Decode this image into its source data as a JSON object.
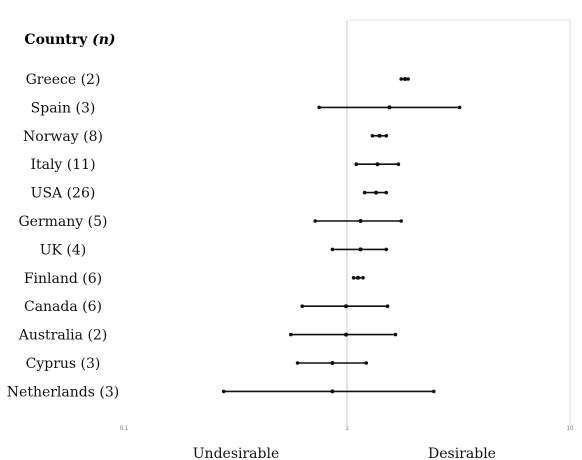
{
  "chart_data": {
    "type": "forest",
    "header": "Country (n)",
    "x_scale": "log",
    "xlim": [
      0.1,
      10
    ],
    "x_ticks": [
      {
        "value": 0.1,
        "label": "0.1"
      },
      {
        "value": 1,
        "label": "1"
      },
      {
        "value": 10,
        "label": "10"
      }
    ],
    "reference_line": 1,
    "left_label": "Undesirable",
    "right_label": "Desirable",
    "rows": [
      {
        "country": "Greece",
        "n": "2",
        "label": "Greece (2)",
        "low": 1.75,
        "est": 1.82,
        "high": 1.88
      },
      {
        "country": "Spain",
        "n": "3",
        "label": "Spain (3)",
        "low": 0.75,
        "est": 1.55,
        "high": 3.2
      },
      {
        "country": "Norway",
        "n": "8",
        "label": "Norway (8)",
        "low": 1.3,
        "est": 1.4,
        "high": 1.5
      },
      {
        "country": "Italy",
        "n": "11",
        "label": "Italy (11)",
        "low": 1.1,
        "est": 1.37,
        "high": 1.7
      },
      {
        "country": "USA",
        "n": "26",
        "label": "USA (26)",
        "low": 1.2,
        "est": 1.35,
        "high": 1.5
      },
      {
        "country": "Germany",
        "n": "5",
        "label": "Germany (5)",
        "low": 0.72,
        "est": 1.15,
        "high": 1.75
      },
      {
        "country": "UK",
        "n": "4",
        "label": "UK (4)",
        "low": 0.86,
        "est": 1.15,
        "high": 1.5
      },
      {
        "country": "Finland",
        "n": "6",
        "label": "Finland (6)",
        "low": 1.07,
        "est": 1.12,
        "high": 1.18
      },
      {
        "country": "Canada",
        "n": "6",
        "label": "Canada (6)",
        "low": 0.63,
        "est": 0.99,
        "high": 1.52
      },
      {
        "country": "Australia",
        "n": "2",
        "label": "Australia (2)",
        "low": 0.56,
        "est": 0.99,
        "high": 1.65
      },
      {
        "country": "Cyprus",
        "n": "3",
        "label": "Cyprus (3)",
        "low": 0.6,
        "est": 0.86,
        "high": 1.22
      },
      {
        "country": "Netherlands",
        "n": "3",
        "label": "Netherlands (3)",
        "low": 0.28,
        "est": 0.86,
        "high": 2.45
      }
    ]
  }
}
